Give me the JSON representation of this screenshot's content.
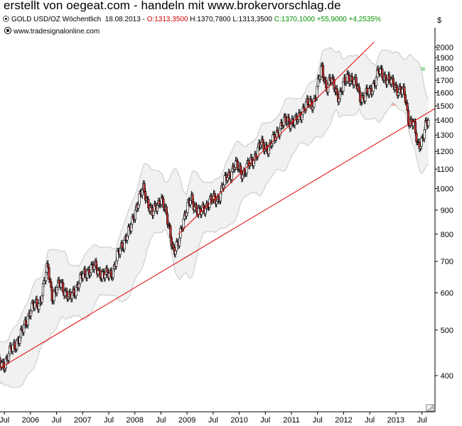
{
  "banner": "erstellt von oegeat.com - handeln mit www.brokervorschlag.de",
  "info": {
    "symbol": "GOLD USD/OZ Wöchentlich",
    "date": "18.08.2013",
    "open": "O:1313,3500",
    "high": "H:1370,7800",
    "low": "L:1313,3500",
    "close": "C:1370,1000",
    "change": "+55,9000",
    "change_pct": "+4,2535%"
  },
  "source": "www.tradesignalonline.com",
  "currency_symbol": "$",
  "colors": {
    "up_candle": "#ffffff",
    "down_candle": "#c83232",
    "trendline": "#e00000",
    "resistance_zone": "#a8dca8",
    "support_zone": "#f5b0b0",
    "bollinger_band": "#c8c8c8"
  },
  "chart_data": {
    "type": "candlestick",
    "scale": "log",
    "y_ticks": [
      400,
      500,
      600,
      700,
      800,
      900,
      1000,
      1100,
      1200,
      1300,
      1400,
      1500,
      1600,
      1700,
      1800,
      1900,
      2000
    ],
    "x_ticks": [
      "Jul",
      "2006",
      "Jul",
      "2007",
      "Jul",
      "2008",
      "Jul",
      "2009",
      "Jul",
      "2010",
      "Jul",
      "2011",
      "Jul",
      "2012",
      "Jul",
      "2013",
      "Jul"
    ],
    "x_range": [
      "2005-06",
      "2013-10"
    ],
    "y_range": [
      335,
      2200
    ],
    "close_path": [
      [
        "2005-05",
        420
      ],
      [
        "2005-07",
        425
      ],
      [
        "2005-09",
        460
      ],
      [
        "2005-11",
        490
      ],
      [
        "2006-01",
        555
      ],
      [
        "2006-03",
        570
      ],
      [
        "2006-05",
        680
      ],
      [
        "2006-06",
        590
      ],
      [
        "2006-08",
        630
      ],
      [
        "2006-10",
        580
      ],
      [
        "2006-12",
        630
      ],
      [
        "2007-02",
        670
      ],
      [
        "2007-04",
        680
      ],
      [
        "2007-06",
        650
      ],
      [
        "2007-08",
        670
      ],
      [
        "2007-10",
        760
      ],
      [
        "2007-12",
        820
      ],
      [
        "2008-01",
        900
      ],
      [
        "2008-03",
        1000
      ],
      [
        "2008-05",
        880
      ],
      [
        "2008-07",
        960
      ],
      [
        "2008-09",
        820
      ],
      [
        "2008-10",
        730
      ],
      [
        "2008-11",
        760
      ],
      [
        "2008-12",
        860
      ],
      [
        "2009-02",
        950
      ],
      [
        "2009-04",
        880
      ],
      [
        "2009-06",
        940
      ],
      [
        "2009-08",
        950
      ],
      [
        "2009-10",
        1050
      ],
      [
        "2009-12",
        1120
      ],
      [
        "2010-02",
        1080
      ],
      [
        "2010-04",
        1150
      ],
      [
        "2010-06",
        1240
      ],
      [
        "2010-08",
        1220
      ],
      [
        "2010-10",
        1340
      ],
      [
        "2010-12",
        1400
      ],
      [
        "2011-02",
        1380
      ],
      [
        "2011-04",
        1500
      ],
      [
        "2011-06",
        1520
      ],
      [
        "2011-08",
        1800
      ],
      [
        "2011-09",
        1650
      ],
      [
        "2011-10",
        1700
      ],
      [
        "2011-12",
        1570
      ],
      [
        "2012-02",
        1750
      ],
      [
        "2012-04",
        1650
      ],
      [
        "2012-05",
        1560
      ],
      [
        "2012-07",
        1600
      ],
      [
        "2012-09",
        1770
      ],
      [
        "2012-11",
        1720
      ],
      [
        "2012-12",
        1670
      ],
      [
        "2013-02",
        1620
      ],
      [
        "2013-03",
        1580
      ],
      [
        "2013-04",
        1400
      ],
      [
        "2013-05",
        1380
      ],
      [
        "2013-06",
        1230
      ],
      [
        "2013-07",
        1280
      ],
      [
        "2013-08",
        1370
      ]
    ],
    "trendlines": [
      {
        "from": [
          "2005-06",
          415
        ],
        "to": [
          "2013-10",
          1480
        ]
      },
      {
        "from": [
          "2008-11",
          800
        ],
        "to": [
          "2012-08",
          2050
        ]
      }
    ],
    "zones": [
      {
        "name": "resistance",
        "low": 1780,
        "high": 1815,
        "from": "2011-08"
      },
      {
        "name": "support",
        "low": 1500,
        "high": 1540,
        "from": "2011-02"
      }
    ]
  }
}
